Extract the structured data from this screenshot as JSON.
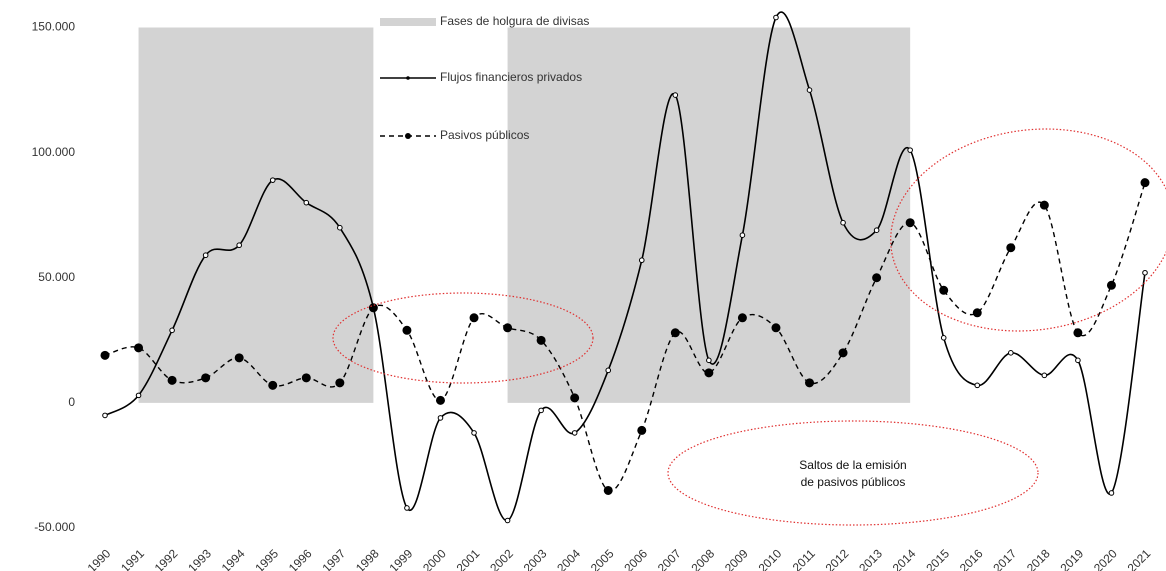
{
  "chart_data": {
    "type": "line",
    "categories": [
      "1990",
      "1991",
      "1992",
      "1993",
      "1994",
      "1995",
      "1996",
      "1997",
      "1998",
      "1999",
      "2000",
      "2001",
      "2002",
      "2003",
      "2004",
      "2005",
      "2006",
      "2007",
      "2008",
      "2009",
      "2010",
      "2011",
      "2012",
      "2013",
      "2014",
      "2015",
      "2016",
      "2017",
      "2018",
      "2019",
      "2020",
      "2021"
    ],
    "shading": {
      "name": "Fases de holgura de divisas",
      "color": "#d3d3d3",
      "phases": [
        [
          "1991",
          "1998"
        ],
        [
          "2002",
          "2014"
        ]
      ]
    },
    "series": [
      {
        "name": "Flujos financieros privados",
        "color": "#000000",
        "dashed": false,
        "values": [
          -5000,
          3000,
          29000,
          59000,
          63000,
          89000,
          80000,
          70000,
          38000,
          -42000,
          -6000,
          -12000,
          -47000,
          -3000,
          -12000,
          13000,
          57000,
          123000,
          17000,
          67000,
          154000,
          125000,
          72000,
          69000,
          101000,
          26000,
          7000,
          20000,
          11000,
          17000,
          -36000,
          52000
        ]
      },
      {
        "name": "Pasivos públicos",
        "color": "#000000",
        "dashed": true,
        "values": [
          19000,
          22000,
          9000,
          10000,
          18000,
          7000,
          10000,
          8000,
          38000,
          29000,
          1000,
          34000,
          30000,
          25000,
          2000,
          -35000,
          -11000,
          28000,
          12000,
          34000,
          30000,
          8000,
          20000,
          50000,
          72000,
          45000,
          36000,
          62000,
          79000,
          28000,
          47000,
          88000
        ]
      }
    ],
    "ylim": [
      -50000,
      150000
    ],
    "yticks": [
      {
        "value": -50000,
        "label": "-50.000"
      },
      0,
      {
        "value": 50000,
        "label": "50.000"
      },
      {
        "value": 100000,
        "label": "100.000"
      },
      {
        "value": 150000,
        "label": "150.000"
      }
    ],
    "annotation": [
      "Saltos de la emisión",
      "de pasivos públicos"
    ],
    "highlight_color": "#e03030"
  }
}
